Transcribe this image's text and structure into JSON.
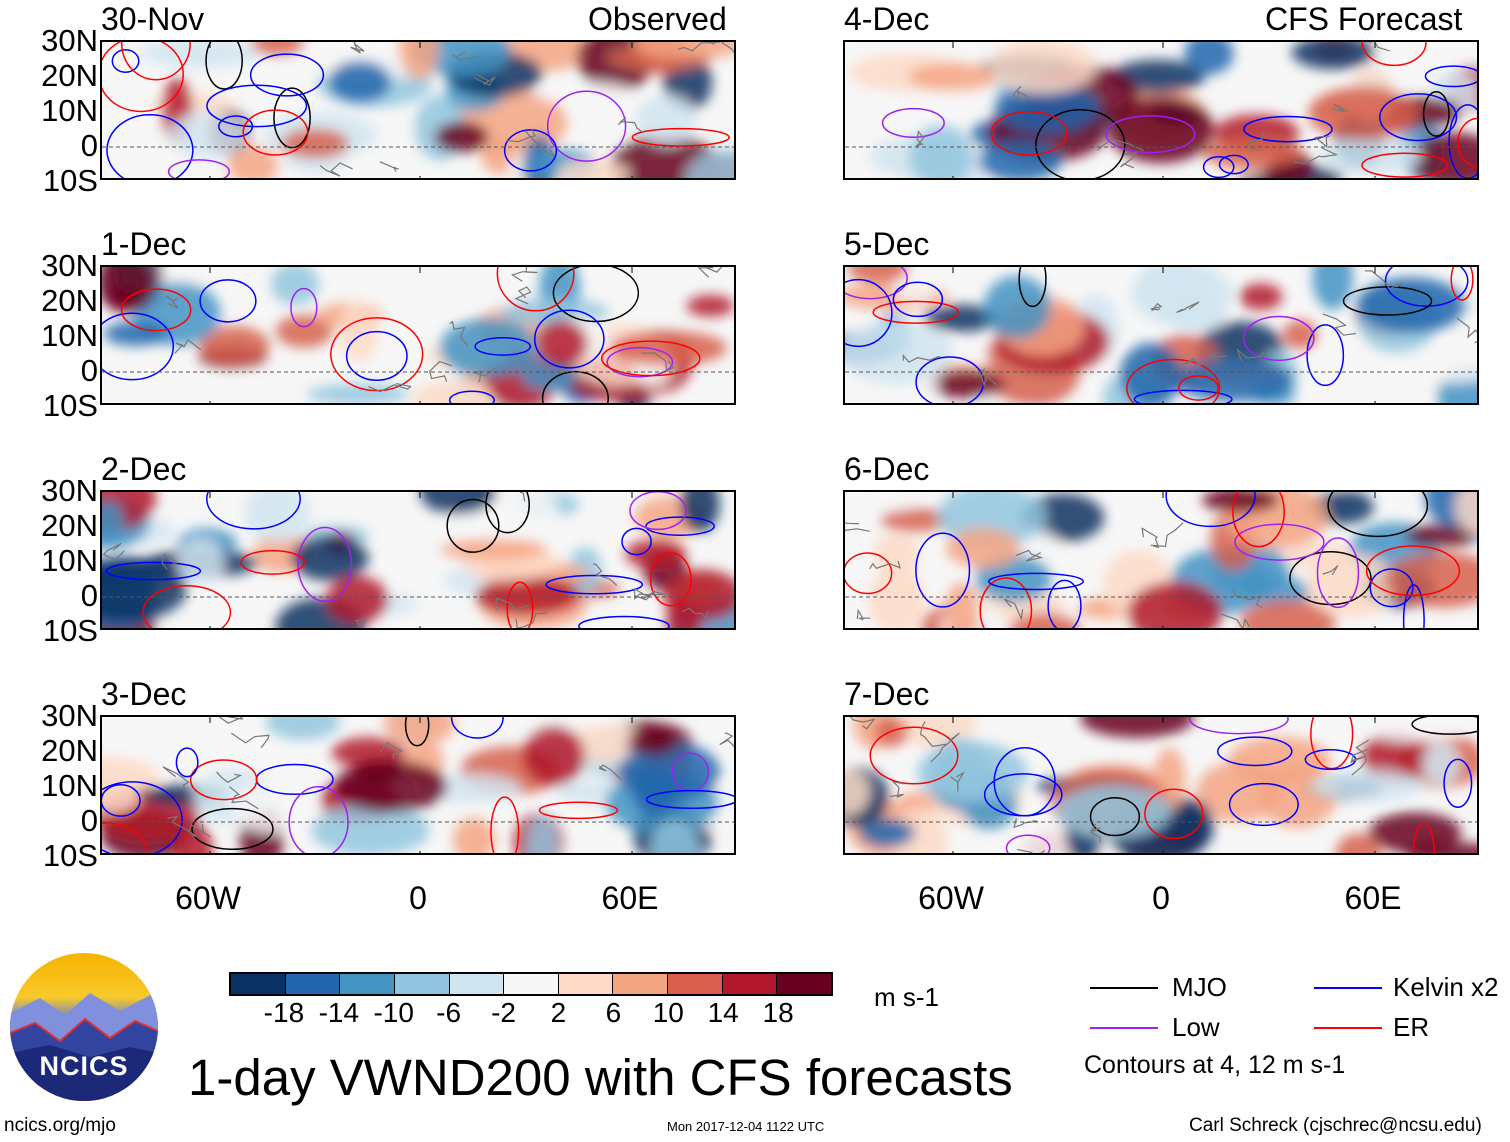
{
  "left_header": {
    "title": "Observed"
  },
  "right_header": {
    "title": "CFS Forecast"
  },
  "left_panels": [
    "30-Nov",
    "1-Dec",
    "2-Dec",
    "3-Dec"
  ],
  "right_panels": [
    "4-Dec",
    "5-Dec",
    "6-Dec",
    "7-Dec"
  ],
  "lat_labels": [
    "30N",
    "20N",
    "10N",
    "0",
    "10S"
  ],
  "lon_labels": [
    "60W",
    "0",
    "60E"
  ],
  "colorbar": {
    "colors": [
      "#0a3162",
      "#2166ac",
      "#4393c3",
      "#92c5de",
      "#d1e5f0",
      "#f7f7f7",
      "#fddbc7",
      "#f4a582",
      "#d6604d",
      "#b2182b",
      "#67001f"
    ],
    "labels": [
      "-18",
      "-14",
      "-10",
      "-6",
      "-2",
      "2",
      "6",
      "10",
      "14",
      "18"
    ],
    "units": "m s-1"
  },
  "legend": {
    "items": [
      {
        "label": "MJO",
        "color": "#000000"
      },
      {
        "label": "Kelvin x2",
        "color": "#0000ff"
      },
      {
        "label": "Low",
        "color": "#a020f0"
      },
      {
        "label": "ER",
        "color": "#ff0000"
      }
    ],
    "contours_note": "Contours at 4, 12 m s-1"
  },
  "title": "1-day VWND200 with CFS forecasts",
  "logo_text": "NCICS",
  "footer": {
    "url": "ncics.org/mjo",
    "timestamp": "Mon 2017-12-04 1122 UTC",
    "credit": "Carl Schreck (cjschrec@ncsu.edu)"
  }
}
